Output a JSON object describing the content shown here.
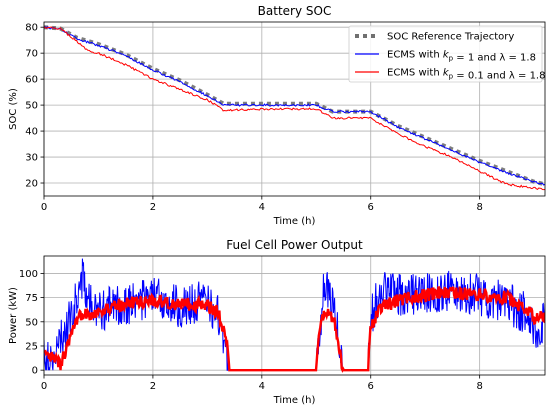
{
  "chart_data": [
    {
      "type": "line",
      "title": "Battery SOC",
      "xlabel": "Time (h)",
      "ylabel": "SOC (%)",
      "xlim": [
        0,
        9.2
      ],
      "ylim": [
        15,
        82
      ],
      "xticks": [
        0,
        2,
        4,
        6,
        8
      ],
      "yticks": [
        20,
        30,
        40,
        50,
        60,
        70,
        80
      ],
      "grid": true,
      "legend_position": "top-right",
      "series": [
        {
          "name": "SOC Reference Trajectory",
          "color": "#707070",
          "style": "dotted-square",
          "x": [
            0,
            0.3,
            0.6,
            1.0,
            1.5,
            2.0,
            2.5,
            3.0,
            3.3,
            4.0,
            5.0,
            5.3,
            6.0,
            6.5,
            7.0,
            7.5,
            8.0,
            8.5,
            9.0,
            9.2
          ],
          "y": [
            80,
            79.5,
            76,
            73.5,
            69.5,
            64,
            59.5,
            54,
            50.5,
            50.5,
            50.5,
            47.5,
            47.5,
            42,
            37.5,
            33,
            28.5,
            24.5,
            20.5,
            19.5
          ]
        },
        {
          "name": "ECMS with k_p = 1 and λ = 1.8",
          "color": "#0000ff",
          "style": "solid",
          "x": [
            0,
            0.3,
            0.6,
            1.0,
            1.5,
            2.0,
            2.5,
            3.0,
            3.3,
            4.0,
            5.0,
            5.3,
            6.0,
            6.5,
            7.0,
            7.5,
            8.0,
            8.5,
            9.0,
            9.2
          ],
          "y": [
            80,
            79.3,
            75.5,
            73,
            69,
            63.5,
            59,
            53.5,
            50,
            50,
            50,
            47.5,
            47.5,
            41.5,
            37,
            32.5,
            28,
            24,
            20.5,
            19.5
          ]
        },
        {
          "name": "ECMS with k_p = 0.1 and λ = 1.8",
          "color": "#ff0000",
          "style": "solid",
          "x": [
            0,
            0.3,
            0.6,
            0.8,
            1.0,
            1.5,
            2.0,
            2.5,
            3.0,
            3.3,
            4.0,
            5.0,
            5.3,
            6.0,
            6.5,
            7.0,
            7.5,
            8.0,
            8.5,
            9.0,
            9.2
          ],
          "y": [
            80,
            79.5,
            74.5,
            71,
            70,
            65.5,
            60,
            56,
            52,
            48,
            48.5,
            48.5,
            45,
            45,
            39,
            34,
            30,
            24.5,
            19.5,
            18,
            17.5
          ]
        }
      ]
    },
    {
      "type": "line",
      "title": "Fuel Cell Power Output",
      "xlabel": "Time (h)",
      "ylabel": "Power (kW)",
      "xlim": [
        0,
        9.2
      ],
      "ylim": [
        -5,
        118
      ],
      "xticks": [
        0,
        2,
        4,
        6,
        8
      ],
      "yticks": [
        0,
        25,
        50,
        75,
        100
      ],
      "grid": true,
      "series": [
        {
          "name": "",
          "color": "#0000ff",
          "style": "solid-noisy",
          "x": [
            0,
            0.2,
            0.3,
            0.5,
            0.7,
            0.9,
            1.2,
            1.6,
            2.0,
            2.5,
            3.0,
            3.2,
            3.35,
            3.4,
            5.0,
            5.05,
            5.15,
            5.3,
            5.4,
            5.45,
            5.5,
            5.95,
            6.0,
            6.2,
            6.5,
            7.0,
            7.5,
            8.0,
            8.5,
            8.8,
            9.0,
            9.2
          ],
          "y": [
            20,
            10,
            30,
            55,
            95,
            60,
            65,
            70,
            75,
            65,
            72,
            55,
            20,
            0,
            0,
            30,
            90,
            70,
            40,
            15,
            0,
            0,
            55,
            85,
            78,
            80,
            82,
            78,
            70,
            60,
            40,
            50
          ]
        },
        {
          "name": "",
          "color": "#ff0000",
          "style": "solid-thick",
          "x": [
            0,
            0.2,
            0.3,
            0.5,
            0.7,
            0.9,
            1.2,
            1.6,
            2.0,
            2.5,
            3.0,
            3.2,
            3.35,
            3.4,
            5.0,
            5.05,
            5.15,
            5.3,
            5.4,
            5.45,
            5.5,
            5.95,
            6.0,
            6.2,
            6.5,
            7.0,
            7.5,
            8.0,
            8.5,
            8.8,
            9.0,
            9.2
          ],
          "y": [
            15,
            12,
            5,
            35,
            60,
            58,
            64,
            70,
            72,
            68,
            67,
            60,
            35,
            0,
            0,
            40,
            60,
            55,
            35,
            10,
            0,
            0,
            45,
            65,
            72,
            78,
            80,
            78,
            75,
            65,
            55,
            55
          ]
        }
      ]
    }
  ]
}
